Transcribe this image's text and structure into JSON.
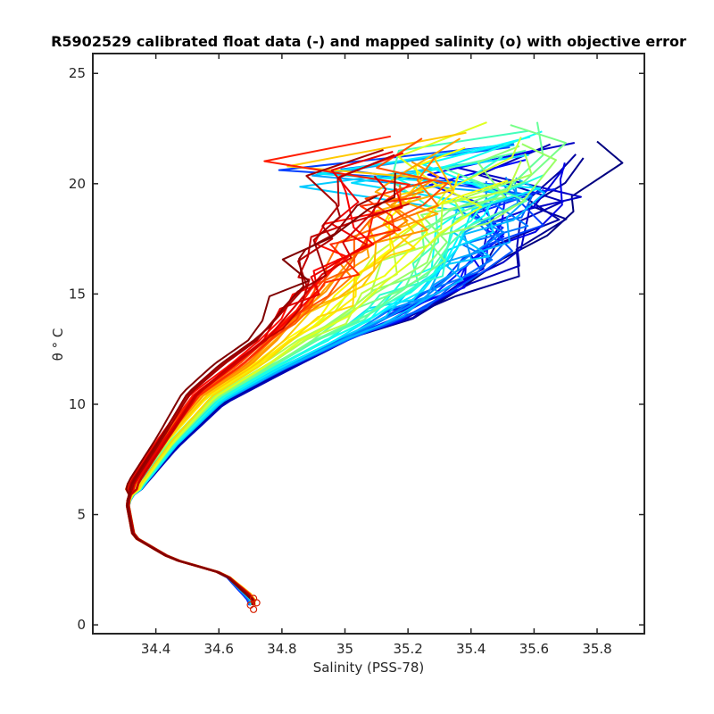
{
  "chart_data": {
    "type": "line",
    "title": "R5902529 calibrated float data (-) and mapped salinity (o) with objective error",
    "xlabel": "Salinity (PSS-78)",
    "ylabel": "θ ° C",
    "xlim": [
      34.2,
      35.95
    ],
    "ylim": [
      -0.4,
      25.9
    ],
    "xticks": [
      34.4,
      34.6,
      34.8,
      35,
      35.2,
      35.4,
      35.6,
      35.8
    ],
    "xtick_labels": [
      "34.4",
      "34.6",
      "34.8",
      "35",
      "35.2",
      "35.4",
      "35.6",
      "35.8"
    ],
    "yticks": [
      0,
      5,
      10,
      15,
      20,
      25
    ],
    "ytick_labels": [
      "0",
      "5",
      "10",
      "15",
      "20",
      "25"
    ],
    "grid": false,
    "colormap": "jet",
    "profile_count": 60,
    "series": [
      {
        "values": [
          [
            35.78,
            22.5
          ],
          [
            35.7,
            20.8
          ],
          [
            35.62,
            18.5
          ],
          [
            35.5,
            16.0
          ],
          [
            35.3,
            14.5
          ],
          [
            35.0,
            13.0
          ],
          [
            34.8,
            11.5
          ],
          [
            34.6,
            10.0
          ],
          [
            34.45,
            8.0
          ],
          [
            34.34,
            6.2
          ],
          [
            34.31,
            5.5
          ],
          [
            34.33,
            4.0
          ],
          [
            34.45,
            3.0
          ],
          [
            34.62,
            2.3
          ],
          [
            34.7,
            1.0
          ]
        ]
      },
      {
        "values": [
          [
            35.5,
            20.0
          ],
          [
            35.48,
            18.5
          ],
          [
            35.45,
            17.0
          ],
          [
            35.3,
            15.0
          ],
          [
            35.05,
            13.2
          ],
          [
            34.8,
            11.6
          ],
          [
            34.6,
            10.1
          ],
          [
            34.45,
            8.1
          ],
          [
            34.34,
            6.2
          ],
          [
            34.31,
            5.5
          ],
          [
            34.33,
            4.0
          ],
          [
            34.45,
            3.0
          ],
          [
            34.62,
            2.3
          ],
          [
            34.7,
            1.1
          ]
        ]
      },
      {
        "values": [
          [
            35.6,
            22.0
          ],
          [
            35.45,
            19.5
          ],
          [
            35.3,
            18.0
          ],
          [
            35.2,
            16.0
          ],
          [
            35.0,
            14.0
          ],
          [
            34.78,
            12.0
          ],
          [
            34.58,
            10.3
          ],
          [
            34.44,
            8.2
          ],
          [
            34.34,
            6.3
          ],
          [
            34.31,
            5.5
          ],
          [
            34.33,
            4.0
          ],
          [
            34.45,
            3.0
          ],
          [
            34.62,
            2.3
          ],
          [
            34.71,
            1.2
          ]
        ]
      },
      {
        "values": [
          [
            35.25,
            21.0
          ],
          [
            35.2,
            19.0
          ],
          [
            35.1,
            17.2
          ],
          [
            34.98,
            15.5
          ],
          [
            34.82,
            13.5
          ],
          [
            34.7,
            11.8
          ],
          [
            34.55,
            10.4
          ],
          [
            34.43,
            8.4
          ],
          [
            34.33,
            6.4
          ],
          [
            34.31,
            5.5
          ],
          [
            34.33,
            4.0
          ],
          [
            34.45,
            3.0
          ],
          [
            34.62,
            2.3
          ],
          [
            34.71,
            1.3
          ]
        ]
      },
      {
        "values": [
          [
            35.1,
            20.3
          ],
          [
            34.95,
            18.0
          ],
          [
            34.85,
            16.0
          ],
          [
            34.8,
            14.5
          ],
          [
            34.72,
            13.0
          ],
          [
            34.6,
            11.8
          ],
          [
            34.5,
            10.5
          ],
          [
            34.42,
            8.5
          ],
          [
            34.33,
            6.5
          ],
          [
            34.31,
            5.5
          ],
          [
            34.33,
            4.0
          ],
          [
            34.45,
            3.0
          ],
          [
            34.62,
            2.3
          ],
          [
            34.71,
            1.1
          ]
        ]
      }
    ],
    "mapped_salinity_points": [
      [
        34.71,
        0.7
      ],
      [
        34.7,
        0.9
      ],
      [
        34.72,
        1.0
      ],
      [
        34.71,
        1.2
      ]
    ]
  }
}
